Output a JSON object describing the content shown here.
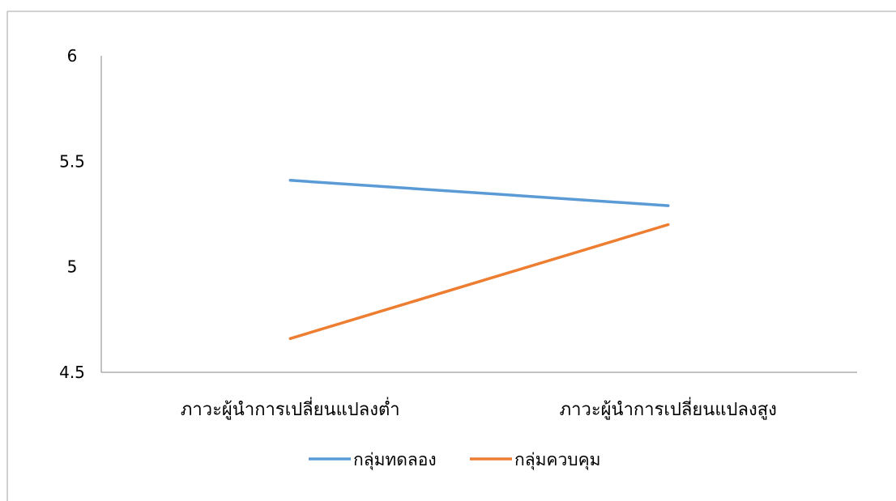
{
  "chart_data": {
    "type": "line",
    "title": "",
    "xlabel": "",
    "ylabel": "",
    "categories": [
      "ภาวะผู้นำการเปลี่ยนแปลงต่ำ",
      "ภาวะผู้นำการเปลี่ยนแปลงสูง"
    ],
    "yticks": [
      "4.5",
      "5",
      "5.5",
      "6"
    ],
    "ylim": [
      4.5,
      6
    ],
    "grid": false,
    "legend_position": "bottom",
    "series": [
      {
        "name": "กลุ่มทดลอง",
        "values": [
          5.41,
          5.29
        ],
        "color": "#5b9bd5"
      },
      {
        "name": "กลุ่มควบคุม",
        "values": [
          4.66,
          5.2
        ],
        "color": "#ed7d31"
      }
    ]
  }
}
